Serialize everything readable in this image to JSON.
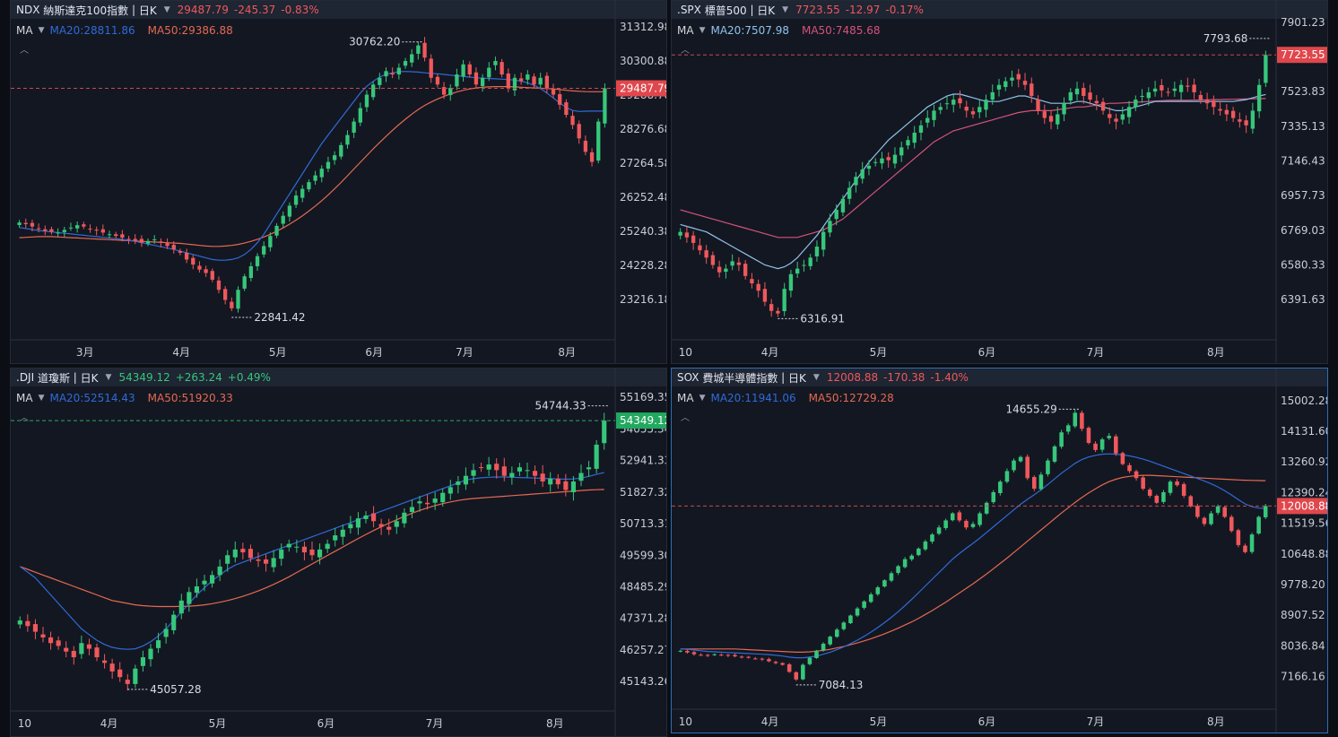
{
  "panels": [
    {
      "symbol": "NDX",
      "name": "納斯達克100指數",
      "interval": "日K",
      "price": "29487.79",
      "change": "-245.37",
      "pct": "-0.83%",
      "dir": "down",
      "ma_label": "MA",
      "ma20": "MA20:28811.86",
      "ma50": "MA50:29386.88",
      "ma20_color": "#2f6bd6",
      "ma50_color": "#e56a50"
    },
    {
      "symbol": ".SPX",
      "name": "標普500",
      "interval": "日K",
      "price": "7723.55",
      "change": "-12.97",
      "pct": "-0.17%",
      "dir": "down",
      "ma_label": "MA",
      "ma20": "MA20:7507.98",
      "ma50": "MA50:7485.68",
      "ma20_color": "#8fc3ea",
      "ma50_color": "#d5537a"
    },
    {
      "symbol": ".DJI",
      "name": "道瓊斯",
      "interval": "日K",
      "price": "54349.12",
      "change": "+263.24",
      "pct": "+0.49%",
      "dir": "up",
      "ma_label": "MA",
      "ma20": "MA20:52514.43",
      "ma50": "MA50:51920.33",
      "ma20_color": "#2f6bd6",
      "ma50_color": "#e56a50"
    },
    {
      "symbol": "SOX",
      "name": "費城半導體指數",
      "interval": "日K",
      "price": "12008.88",
      "change": "-170.38",
      "pct": "-1.40%",
      "dir": "down",
      "ma_label": "MA",
      "ma20": "MA20:11941.06",
      "ma50": "MA50:12729.28",
      "ma20_color": "#2f6bd6",
      "ma50_color": "#e56a50"
    }
  ],
  "chart_data": [
    {
      "type": "candlestick",
      "title": "NDX 納斯達克100指數 日K",
      "yticks": [
        "31312.98",
        "30300.88",
        "29288.78",
        "28276.68",
        "27264.58",
        "26252.48",
        "25240.38",
        "24228.28",
        "23216.18"
      ],
      "ylim": [
        22600,
        31500
      ],
      "xticks": [
        "3月",
        "4月",
        "5月",
        "6月",
        "7月",
        "8月"
      ],
      "last_price": 29487.79,
      "high_label": "30762.20",
      "low_label": "22841.42",
      "closes": [
        25500,
        25450,
        25380,
        25300,
        25250,
        25220,
        25200,
        25280,
        25350,
        25420,
        25380,
        25300,
        25260,
        25200,
        25150,
        25100,
        25050,
        25000,
        24950,
        24900,
        24950,
        25000,
        24900,
        24800,
        24700,
        24600,
        24400,
        24250,
        24100,
        24000,
        23800,
        23500,
        23200,
        22950,
        23500,
        23900,
        24200,
        24500,
        24800,
        25100,
        25400,
        25700,
        26000,
        26300,
        26500,
        26700,
        26900,
        27100,
        27300,
        27500,
        27800,
        28100,
        28500,
        28900,
        29300,
        29600,
        29800,
        30000,
        29900,
        30100,
        30300,
        30500,
        30762,
        30400,
        29800,
        29600,
        29300,
        29500,
        29900,
        30200,
        29900,
        29600,
        29800,
        30100,
        30300,
        29900,
        29500,
        29800,
        29700,
        29900,
        29600,
        29800,
        29500,
        29300,
        29000,
        28700,
        28400,
        28000,
        27600,
        27300,
        28500,
        29487
      ],
      "ma20": [
        25350,
        25320,
        25290,
        25260,
        25240,
        25220,
        25200,
        25180,
        25160,
        25140,
        25120,
        25100,
        25080,
        25060,
        25040,
        25020,
        25000,
        24970,
        24940,
        24900,
        24860,
        24820,
        24780,
        24740,
        24700,
        24650,
        24600,
        24550,
        24500,
        24450,
        24400,
        24380,
        24380,
        24400,
        24450,
        24550,
        24700,
        24900,
        25150,
        25450,
        25750,
        26050,
        26350,
        26650,
        26950,
        27250,
        27550,
        27850,
        28100,
        28350,
        28600,
        28850,
        29100,
        29350,
        29550,
        29700,
        29820,
        29900,
        29950,
        29980,
        29990,
        29980,
        29970,
        29950,
        29930,
        29920,
        29900,
        29880,
        29860,
        29840,
        29820,
        29800,
        29790,
        29780,
        29770,
        29760,
        29750,
        29730,
        29700,
        29650,
        29580,
        29480,
        29350,
        29200,
        29050,
        28920,
        28830,
        28800,
        28810,
        28812,
        28812,
        28811
      ],
      "ma50": [
        25050,
        25060,
        25070,
        25080,
        25080,
        25080,
        25070,
        25060,
        25050,
        25040,
        25030,
        25020,
        25010,
        25000,
        24990,
        24980,
        24970,
        24960,
        24950,
        24940,
        24930,
        24920,
        24910,
        24900,
        24890,
        24880,
        24860,
        24840,
        24820,
        24800,
        24790,
        24790,
        24800,
        24820,
        24850,
        24890,
        24940,
        25000,
        25070,
        25150,
        25240,
        25340,
        25450,
        25570,
        25700,
        25840,
        25990,
        26150,
        26320,
        26500,
        26690,
        26890,
        27090,
        27290,
        27490,
        27690,
        27880,
        28060,
        28240,
        28410,
        28570,
        28720,
        28860,
        28980,
        29080,
        29170,
        29250,
        29320,
        29380,
        29430,
        29470,
        29500,
        29520,
        29530,
        29540,
        29540,
        29540,
        29530,
        29520,
        29510,
        29500,
        29490,
        29480,
        29470,
        29450,
        29430,
        29410,
        29400,
        29390,
        29388,
        29387,
        29386
      ]
    },
    {
      "type": "candlestick",
      "title": ".SPX 標普500 日K",
      "yticks": [
        "7901.23",
        "7712.53",
        "7523.83",
        "7335.13",
        "7146.43",
        "6957.73",
        "6769.03",
        "6580.33",
        "6391.63"
      ],
      "ylim": [
        6280,
        7910
      ],
      "xticks": [
        "10",
        "4月",
        "5月",
        "6月",
        "7月",
        "8月"
      ],
      "last_price": 7723.55,
      "high_label": "7793.68",
      "low_label": "6316.91",
      "closes": [
        6760,
        6730,
        6700,
        6660,
        6620,
        6580,
        6540,
        6560,
        6600,
        6580,
        6520,
        6480,
        6440,
        6380,
        6330,
        6316,
        6450,
        6530,
        6560,
        6580,
        6620,
        6680,
        6760,
        6820,
        6880,
        6940,
        7000,
        7060,
        7100,
        7120,
        7140,
        7160,
        7150,
        7180,
        7220,
        7260,
        7300,
        7340,
        7380,
        7420,
        7440,
        7460,
        7480,
        7460,
        7420,
        7400,
        7440,
        7480,
        7520,
        7560,
        7580,
        7600,
        7590,
        7560,
        7500,
        7420,
        7380,
        7360,
        7400,
        7460,
        7520,
        7540,
        7500,
        7480,
        7460,
        7420,
        7380,
        7360,
        7400,
        7440,
        7480,
        7500,
        7520,
        7540,
        7530,
        7520,
        7540,
        7560,
        7550,
        7520,
        7480,
        7460,
        7440,
        7420,
        7400,
        7380,
        7360,
        7340,
        7420,
        7560,
        7723
      ],
      "ma20": [
        6800,
        6790,
        6780,
        6770,
        6760,
        6740,
        6720,
        6700,
        6680,
        6660,
        6640,
        6620,
        6600,
        6580,
        6570,
        6560,
        6570,
        6590,
        6620,
        6660,
        6700,
        6740,
        6790,
        6840,
        6890,
        6940,
        6990,
        7040,
        7090,
        7140,
        7180,
        7220,
        7260,
        7290,
        7320,
        7350,
        7380,
        7410,
        7440,
        7460,
        7480,
        7500,
        7510,
        7510,
        7500,
        7490,
        7480,
        7470,
        7470,
        7470,
        7480,
        7490,
        7500,
        7500,
        7490,
        7480,
        7470,
        7460,
        7460,
        7460,
        7460,
        7470,
        7470,
        7460,
        7450,
        7440,
        7430,
        7420,
        7420,
        7430,
        7440,
        7450,
        7460,
        7470,
        7470,
        7470,
        7470,
        7470,
        7470,
        7470,
        7470,
        7470,
        7470,
        7470,
        7470,
        7470,
        7475,
        7480,
        7490,
        7500,
        7508
      ],
      "ma50": [
        6880,
        6870,
        6860,
        6850,
        6840,
        6830,
        6820,
        6810,
        6800,
        6790,
        6780,
        6770,
        6760,
        6750,
        6740,
        6730,
        6730,
        6730,
        6730,
        6740,
        6750,
        6760,
        6770,
        6790,
        6810,
        6830,
        6860,
        6890,
        6920,
        6950,
        6980,
        7010,
        7040,
        7070,
        7100,
        7130,
        7160,
        7190,
        7220,
        7250,
        7270,
        7290,
        7310,
        7320,
        7330,
        7340,
        7350,
        7360,
        7370,
        7380,
        7390,
        7400,
        7410,
        7415,
        7420,
        7420,
        7420,
        7420,
        7425,
        7430,
        7435,
        7440,
        7440,
        7445,
        7450,
        7455,
        7460,
        7460,
        7462,
        7464,
        7466,
        7468,
        7470,
        7472,
        7474,
        7476,
        7476,
        7476,
        7476,
        7477,
        7478,
        7479,
        7480,
        7480,
        7481,
        7482,
        7483,
        7484,
        7485,
        7485,
        7486
      ]
    },
    {
      "type": "candlestick",
      "title": ".DJI 道瓊斯 日K",
      "yticks": [
        "55169.35",
        "54055.34",
        "52941.33",
        "51827.32",
        "50713.31",
        "49599.30",
        "48485.29",
        "47371.28",
        "46257.27",
        "45143.26"
      ],
      "ylim": [
        44800,
        55300
      ],
      "xticks": [
        "10",
        "4月",
        "5月",
        "6月",
        "7月",
        "8月"
      ],
      "last_price": 54349.12,
      "high_label": "54744.33",
      "low_label": "45057.28",
      "closes": [
        47300,
        47100,
        46900,
        46700,
        46500,
        46400,
        46200,
        46000,
        46500,
        46300,
        46000,
        45800,
        45500,
        45300,
        45057,
        45600,
        46000,
        46300,
        46600,
        47000,
        47500,
        48000,
        48300,
        48500,
        48700,
        48900,
        49200,
        49600,
        49800,
        49700,
        49500,
        49400,
        49300,
        49500,
        49800,
        50000,
        49900,
        49700,
        49600,
        49800,
        50000,
        50300,
        50500,
        50700,
        50900,
        51000,
        50800,
        50600,
        50500,
        50800,
        51100,
        51300,
        51500,
        51400,
        51600,
        51800,
        52000,
        52200,
        52400,
        52600,
        52700,
        52800,
        52600,
        52400,
        52500,
        52700,
        52600,
        52400,
        52200,
        52300,
        52100,
        51900,
        52200,
        52500,
        52700,
        53500,
        54349
      ],
      "ma20": [
        49200,
        49000,
        48800,
        48500,
        48200,
        47900,
        47600,
        47300,
        47000,
        46800,
        46600,
        46450,
        46350,
        46300,
        46280,
        46300,
        46400,
        46550,
        46750,
        47000,
        47300,
        47600,
        47900,
        48200,
        48450,
        48700,
        48900,
        49100,
        49250,
        49350,
        49450,
        49550,
        49650,
        49750,
        49850,
        49950,
        50050,
        50150,
        50250,
        50350,
        50450,
        50550,
        50650,
        50750,
        50850,
        50950,
        51050,
        51150,
        51250,
        51350,
        51450,
        51550,
        51650,
        51750,
        51850,
        51950,
        52050,
        52150,
        52250,
        52300,
        52330,
        52350,
        52360,
        52360,
        52350,
        52340,
        52330,
        52320,
        52310,
        52300,
        52290,
        52280,
        52290,
        52320,
        52380,
        52450,
        52514
      ],
      "ma50": [
        49200,
        49100,
        49000,
        48900,
        48800,
        48700,
        48600,
        48500,
        48400,
        48300,
        48200,
        48100,
        48000,
        47950,
        47900,
        47850,
        47820,
        47800,
        47790,
        47790,
        47790,
        47795,
        47800,
        47820,
        47850,
        47890,
        47940,
        48000,
        48070,
        48150,
        48240,
        48340,
        48450,
        48570,
        48700,
        48840,
        48990,
        49140,
        49290,
        49440,
        49590,
        49740,
        49890,
        50040,
        50190,
        50330,
        50470,
        50600,
        50730,
        50850,
        50970,
        51080,
        51180,
        51270,
        51350,
        51420,
        51480,
        51530,
        51570,
        51600,
        51620,
        51640,
        51660,
        51680,
        51700,
        51720,
        51740,
        51760,
        51780,
        51800,
        51820,
        51840,
        51860,
        51880,
        51900,
        51910,
        51920
      ]
    },
    {
      "type": "candlestick",
      "title": "SOX 費城半導體指數 日K",
      "yticks": [
        "15002.28",
        "14131.60",
        "13260.92",
        "12390.24",
        "11519.56",
        "10648.88",
        "9778.20",
        "8907.52",
        "8036.84",
        "7166.16"
      ],
      "ylim": [
        6800,
        15200
      ],
      "xticks": [
        "10",
        "4月",
        "5月",
        "6月",
        "7月",
        "8月"
      ],
      "last_price": 12008.88,
      "high_label": "14655.29",
      "low_label": "7084.13",
      "closes": [
        7900,
        7850,
        7800,
        7780,
        7760,
        7800,
        7780,
        7760,
        7740,
        7720,
        7700,
        7680,
        7650,
        7600,
        7550,
        7500,
        7300,
        7084,
        7500,
        7700,
        7900,
        8100,
        8300,
        8500,
        8700,
        8900,
        9100,
        9300,
        9500,
        9700,
        9900,
        10100,
        10300,
        10500,
        10600,
        10800,
        11000,
        11200,
        11400,
        11600,
        11800,
        11600,
        11400,
        11500,
        11800,
        12100,
        12400,
        12700,
        13000,
        13300,
        13400,
        12800,
        12500,
        12900,
        13300,
        13700,
        14100,
        14300,
        14655,
        14200,
        13800,
        13600,
        13900,
        14000,
        13500,
        13200,
        13000,
        12800,
        12500,
        12300,
        12100,
        12400,
        12700,
        12600,
        12300,
        12000,
        11700,
        11500,
        11800,
        12000,
        11700,
        11300,
        10900,
        10700,
        11200,
        11700,
        12008
      ],
      "ma20": [
        7950,
        7940,
        7920,
        7900,
        7880,
        7870,
        7860,
        7850,
        7840,
        7830,
        7820,
        7810,
        7800,
        7790,
        7770,
        7750,
        7720,
        7700,
        7700,
        7720,
        7750,
        7800,
        7860,
        7930,
        8010,
        8100,
        8200,
        8310,
        8430,
        8560,
        8700,
        8850,
        9010,
        9180,
        9360,
        9550,
        9740,
        9930,
        10120,
        10310,
        10500,
        10660,
        10810,
        10950,
        11100,
        11260,
        11420,
        11580,
        11740,
        11900,
        12060,
        12200,
        12330,
        12470,
        12620,
        12780,
        12940,
        13080,
        13220,
        13330,
        13400,
        13450,
        13480,
        13490,
        13480,
        13460,
        13430,
        13390,
        13340,
        13280,
        13210,
        13140,
        13070,
        13000,
        12930,
        12860,
        12790,
        12720,
        12640,
        12550,
        12440,
        12320,
        12190,
        12070,
        11990,
        11950,
        11941
      ],
      "ma50": [
        7950,
        7950,
        7950,
        7950,
        7950,
        7950,
        7950,
        7950,
        7950,
        7940,
        7930,
        7920,
        7910,
        7900,
        7890,
        7880,
        7870,
        7860,
        7860,
        7870,
        7890,
        7910,
        7940,
        7980,
        8020,
        8070,
        8120,
        8180,
        8240,
        8310,
        8380,
        8460,
        8540,
        8630,
        8720,
        8820,
        8930,
        9040,
        9160,
        9280,
        9410,
        9540,
        9670,
        9800,
        9940,
        10080,
        10230,
        10380,
        10530,
        10690,
        10850,
        11010,
        11170,
        11330,
        11490,
        11650,
        11810,
        11960,
        12110,
        12250,
        12380,
        12500,
        12610,
        12700,
        12770,
        12820,
        12850,
        12870,
        12880,
        12880,
        12870,
        12860,
        12850,
        12840,
        12830,
        12820,
        12810,
        12800,
        12790,
        12780,
        12770,
        12760,
        12750,
        12740,
        12735,
        12731,
        12729
      ]
    }
  ]
}
